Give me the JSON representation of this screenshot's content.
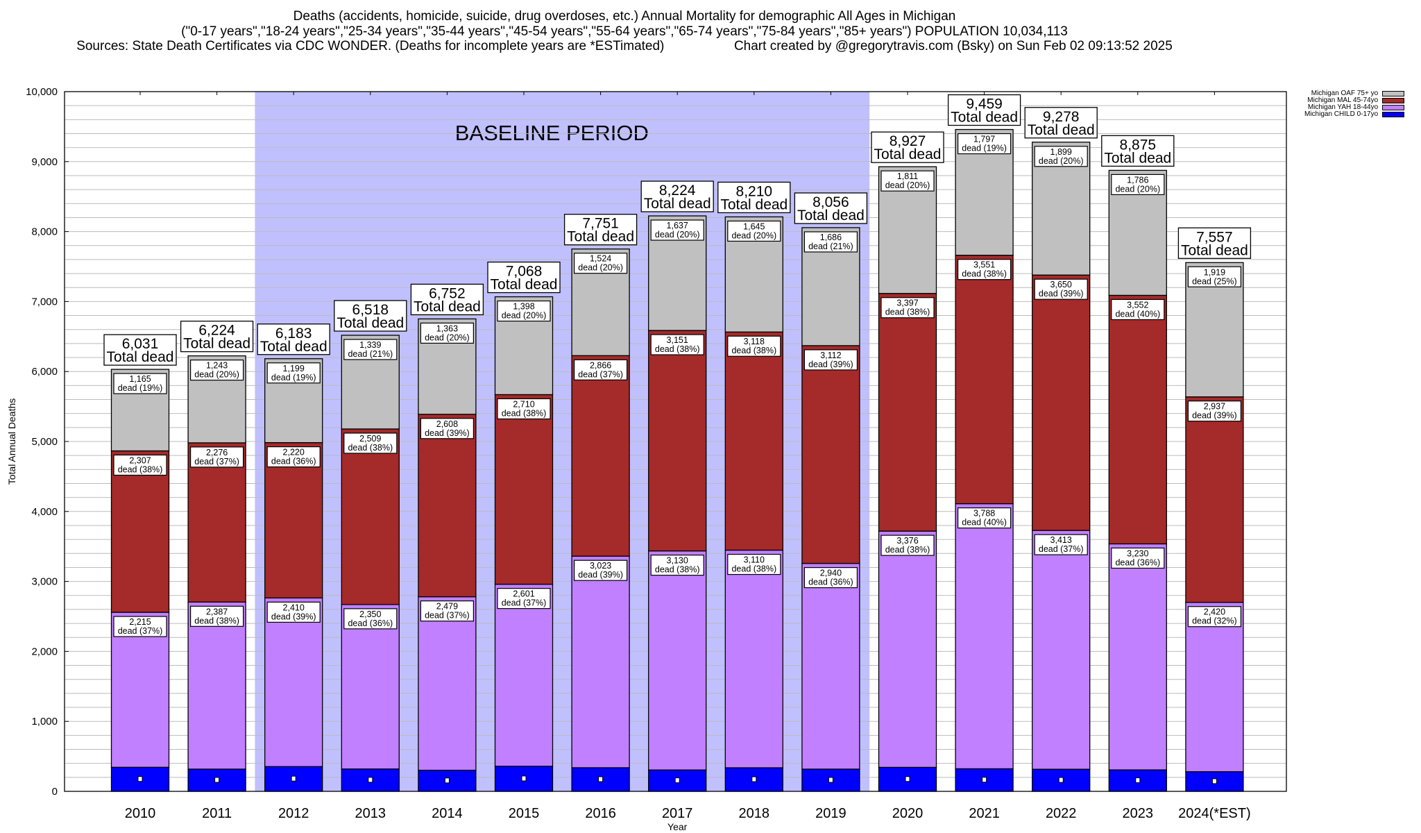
{
  "header": {
    "title_line1": "Deaths (accidents, homicide, suicide, drug overdoses, etc.) Annual Mortality for demographic All Ages in Michigan",
    "title_line2": "(\"0-17 years\",\"18-24 years\",\"25-34 years\",\"35-44 years\",\"45-54 years\",\"55-64 years\",\"65-74 years\",\"75-84 years\",\"85+ years\") POPULATION 10,034,113",
    "title_line3_left": "Sources: State Death Certificates via CDC WONDER. (Deaths for incomplete years are *ESTimated)",
    "title_line3_right": "Chart created by @gregorytravis.com (Bsky) on Sun Feb 02 09:13:52 2025"
  },
  "chart_data": {
    "type": "bar",
    "stacked": true,
    "title": "Deaths (accidents, homicide, suicide, drug overdoses, etc.) Annual Mortality for demographic All Ages in Michigan",
    "xlabel": "Year",
    "ylabel": "Total Annual Deaths",
    "ylim": [
      0,
      10000
    ],
    "yticks": [
      0,
      1000,
      2000,
      3000,
      4000,
      5000,
      6000,
      7000,
      8000,
      9000,
      10000
    ],
    "ytick_labels": [
      "0",
      "1,000",
      "2,000",
      "3,000",
      "4,000",
      "5,000",
      "6,000",
      "7,000",
      "8,000",
      "9,000",
      "10,000"
    ],
    "minor_grid_step": 200,
    "grid": true,
    "legend_position": "top-right (outside plot)",
    "categories": [
      "2010",
      "2011",
      "2012",
      "2013",
      "2014",
      "2015",
      "2016",
      "2017",
      "2018",
      "2019",
      "2020",
      "2021",
      "2022",
      "2023",
      "2024(*EST)"
    ],
    "series": [
      {
        "name": "Michigan CHILD 0-17yo",
        "color": "#0000ff",
        "values": [
          344,
          318,
          354,
          320,
          302,
          359,
          338,
          306,
          337,
          318,
          343,
          323,
          316,
          307,
          281
        ],
        "labeled": false
      },
      {
        "name": "Michigan YAH 18-44yo",
        "color": "#c080ff",
        "values": [
          2215,
          2387,
          2410,
          2350,
          2479,
          2601,
          3023,
          3130,
          3110,
          2940,
          3376,
          3788,
          3413,
          3230,
          2420
        ],
        "pct": [
          37,
          38,
          39,
          36,
          37,
          37,
          39,
          38,
          38,
          36,
          38,
          40,
          37,
          36,
          32
        ]
      },
      {
        "name": "Michigan MAL 45-74yo",
        "color": "#a52a2a",
        "values": [
          2307,
          2276,
          2220,
          2509,
          2608,
          2710,
          2866,
          3151,
          3118,
          3112,
          3397,
          3551,
          3650,
          3552,
          2937
        ],
        "pct": [
          38,
          37,
          36,
          38,
          39,
          38,
          37,
          38,
          38,
          39,
          38,
          38,
          39,
          40,
          39
        ]
      },
      {
        "name": "Michigan OAF 75+ yo",
        "color": "#c0c0c0",
        "values": [
          1165,
          1243,
          1199,
          1339,
          1363,
          1398,
          1524,
          1637,
          1645,
          1686,
          1811,
          1797,
          1899,
          1786,
          1919
        ],
        "pct": [
          19,
          20,
          19,
          21,
          20,
          20,
          20,
          20,
          20,
          21,
          20,
          19,
          20,
          20,
          25
        ]
      }
    ],
    "totals": [
      6031,
      6224,
      6183,
      6518,
      6752,
      7068,
      7751,
      8224,
      8210,
      8056,
      8927,
      9459,
      9278,
      8875,
      7557
    ],
    "total_suffix": "Total dead",
    "segment_suffix": "dead",
    "annotation": {
      "text": "BASELINE PERIOD",
      "from_category": "2012",
      "to_category": "2019",
      "color": "#c0c0ff"
    }
  },
  "legend": {
    "order": [
      "Michigan OAF 75+ yo",
      "Michigan MAL 45-74yo",
      "Michigan YAH 18-44yo",
      "Michigan CHILD 0-17yo"
    ],
    "colors": [
      "#c0c0c0",
      "#a52a2a",
      "#c080ff",
      "#0000ff"
    ]
  }
}
